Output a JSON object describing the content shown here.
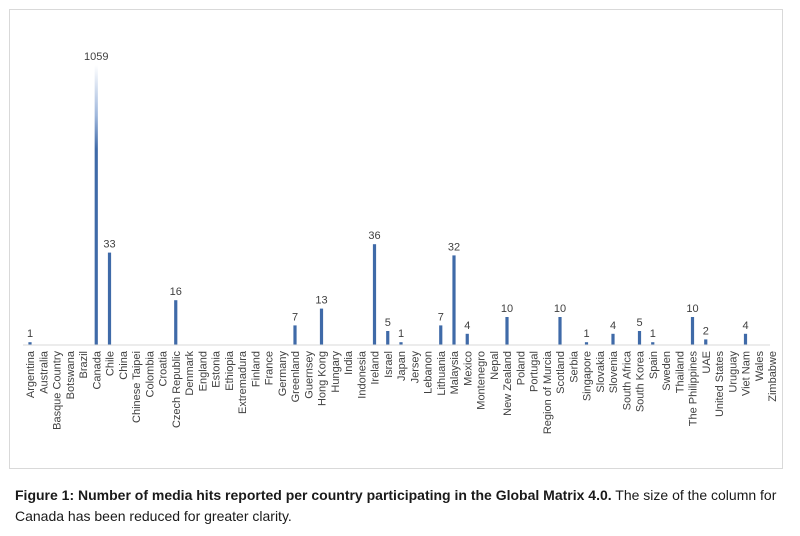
{
  "chart_data": {
    "type": "bar",
    "title": "",
    "xlabel": "",
    "ylabel": "",
    "ylim": [
      0,
      1059
    ],
    "axis_break_note": "The size of the column for Canada has been reduced for greater clarity.",
    "grid": false,
    "legend": "none",
    "bar_color": "#4472c4",
    "bar_color_dark": "#3f6aa8",
    "categories": [
      "Argentina",
      "Australia",
      "Basque Country",
      "Botswana",
      "Brazil",
      "Canada",
      "Chile",
      "China",
      "Chinese Taipei",
      "Colombia",
      "Croatia",
      "Czech Republic",
      "Denmark",
      "England",
      "Estonia",
      "Ethiopia",
      "Extremadura",
      "Finland",
      "France",
      "Germany",
      "Greenland",
      "Guernsey",
      "Hong Kong",
      "Hungary",
      "India",
      "Indonesia",
      "Ireland",
      "Israel",
      "Japan",
      "Jersey",
      "Lebanon",
      "Lithuania",
      "Malaysia",
      "Mexico",
      "Montenegro",
      "Nepal",
      "New Zealand",
      "Poland",
      "Portugal",
      "Region of Murcia",
      "Scotland",
      "Serbia",
      "Singapore",
      "Slovakia",
      "Slovenia",
      "South Africa",
      "South Korea",
      "Spain",
      "Sweden",
      "Thailand",
      "The Philippines",
      "UAE",
      "United States",
      "Uruguay",
      "Viet Nam",
      "Wales",
      "Zimbabwe"
    ],
    "values": [
      1,
      null,
      null,
      null,
      null,
      1059,
      33,
      null,
      null,
      null,
      null,
      16,
      null,
      null,
      null,
      null,
      null,
      null,
      null,
      null,
      7,
      null,
      13,
      null,
      null,
      null,
      36,
      5,
      1,
      null,
      null,
      7,
      32,
      4,
      null,
      null,
      10,
      null,
      null,
      null,
      10,
      null,
      1,
      null,
      4,
      null,
      5,
      1,
      null,
      null,
      10,
      2,
      null,
      null,
      4,
      null,
      null
    ]
  },
  "caption": {
    "bold": "Figure 1: Number of media hits reported per country participating in the Global Matrix 4.0.",
    "rest": " The size of the column for Canada has been reduced for greater clarity."
  }
}
